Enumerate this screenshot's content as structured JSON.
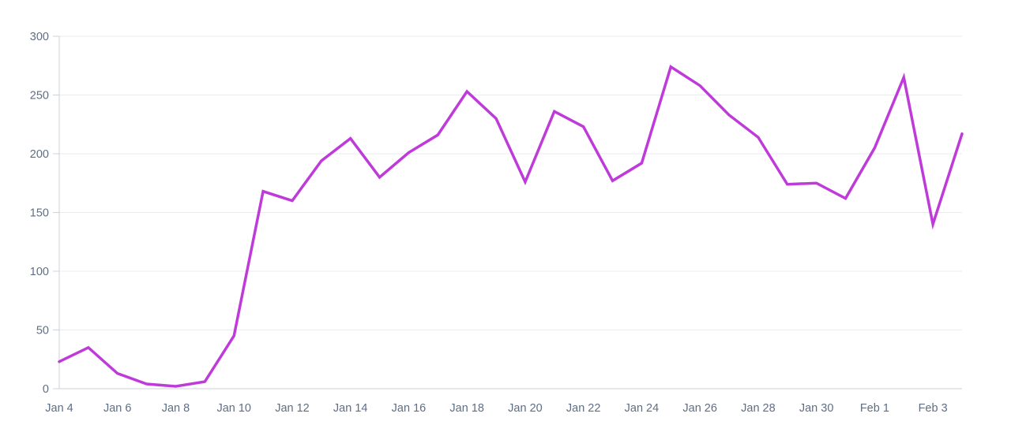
{
  "page": {
    "background": "#ffffff"
  },
  "chart_data": {
    "type": "line",
    "title": "",
    "xlabel": "",
    "ylabel": "",
    "x": [
      "Jan 4",
      "Jan 5",
      "Jan 6",
      "Jan 7",
      "Jan 8",
      "Jan 9",
      "Jan 10",
      "Jan 11",
      "Jan 12",
      "Jan 13",
      "Jan 14",
      "Jan 15",
      "Jan 16",
      "Jan 17",
      "Jan 18",
      "Jan 19",
      "Jan 20",
      "Jan 21",
      "Jan 22",
      "Jan 23",
      "Jan 24",
      "Jan 25",
      "Jan 26",
      "Jan 27",
      "Jan 28",
      "Jan 29",
      "Jan 30",
      "Jan 31",
      "Feb 1",
      "Feb 2",
      "Feb 3",
      "Feb 4"
    ],
    "values": [
      23,
      35,
      13,
      4,
      2,
      6,
      45,
      168,
      160,
      194,
      213,
      180,
      201,
      216,
      253,
      230,
      176,
      236,
      223,
      177,
      192,
      274,
      258,
      233,
      214,
      174,
      175,
      162,
      205,
      265,
      140,
      217
    ],
    "ylim": [
      0,
      300
    ],
    "y_ticks": [
      0,
      50,
      100,
      150,
      200,
      250,
      300
    ],
    "x_tick_labels": [
      "Jan 4",
      "Jan 6",
      "Jan 8",
      "Jan 10",
      "Jan 12",
      "Jan 14",
      "Jan 16",
      "Jan 18",
      "Jan 20",
      "Jan 22",
      "Jan 24",
      "Jan 26",
      "Jan 28",
      "Jan 30",
      "Feb 1",
      "Feb 3"
    ],
    "x_tick_step": 2,
    "grid": "horizontal",
    "legend": "none",
    "line_color": "#bf3bd9",
    "grid_color": "#e9ebee",
    "axis_color": "#ccd2d9",
    "label_color": "#5f6e85",
    "background_color": "#ffffff"
  }
}
